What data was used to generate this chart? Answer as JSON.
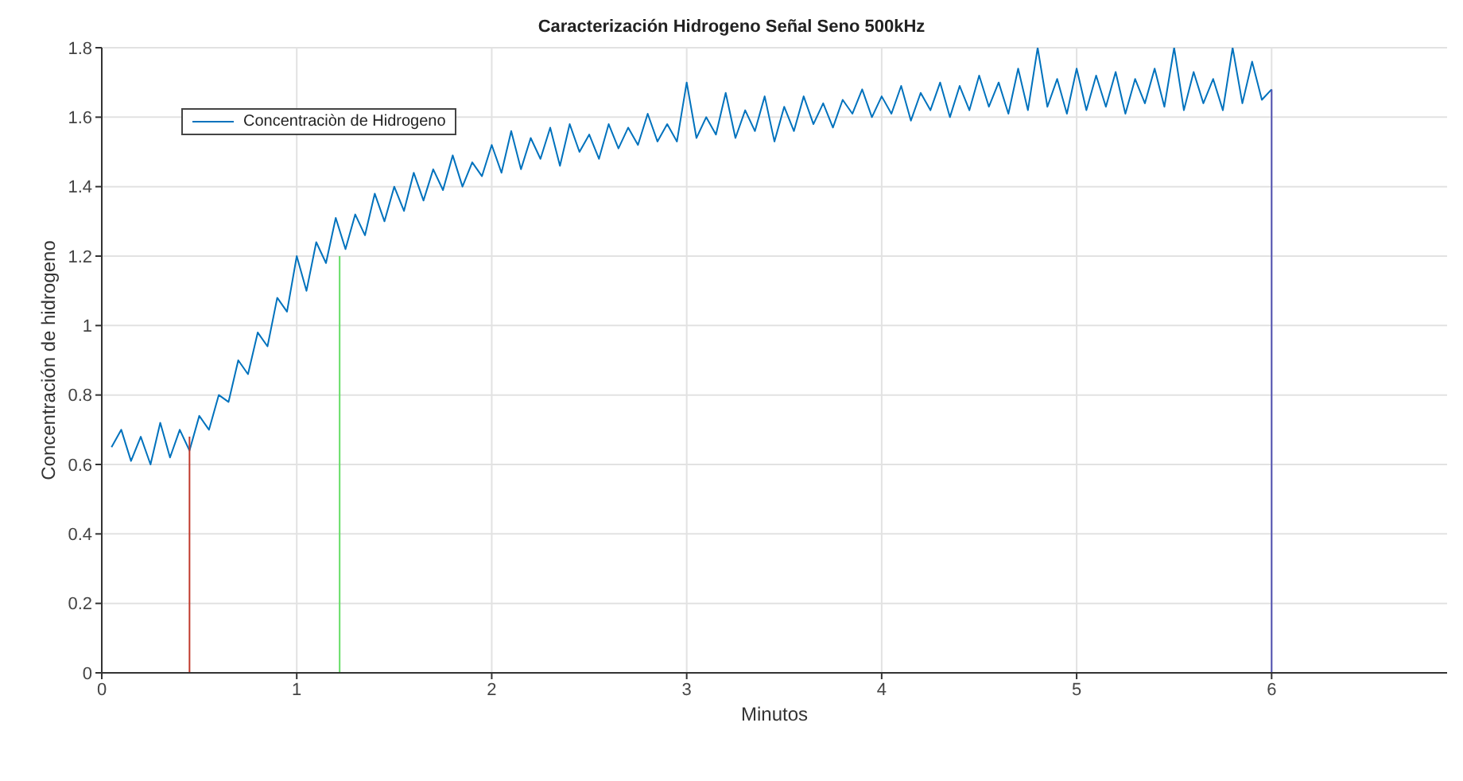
{
  "chart_data": {
    "type": "line",
    "title": "Caracterización Hidrogeno  Señal Seno 500kHz",
    "xlabel": "Minutos",
    "ylabel": "Concentración de hidrogeno",
    "xlim": [
      0,
      6.9
    ],
    "xticks": [
      0,
      1,
      2,
      3,
      4,
      5,
      6
    ],
    "ylim": [
      0,
      1.8
    ],
    "yticks": [
      0,
      0.2,
      0.4,
      0.6,
      0.8,
      1,
      1.2,
      1.4,
      1.6,
      1.8
    ],
    "grid": true,
    "legend": "top left",
    "marker": "none",
    "line_style": "solid",
    "series": [
      {
        "name": "Concentraciòn de Hidrogeno",
        "color": "#0072bd",
        "x": [
          0.05,
          0.1,
          0.15,
          0.2,
          0.25,
          0.3,
          0.35,
          0.4,
          0.45,
          0.5,
          0.55,
          0.6,
          0.65,
          0.7,
          0.75,
          0.8,
          0.85,
          0.9,
          0.95,
          1.0,
          1.05,
          1.1,
          1.15,
          1.2,
          1.25,
          1.3,
          1.35,
          1.4,
          1.45,
          1.5,
          1.55,
          1.6,
          1.65,
          1.7,
          1.75,
          1.8,
          1.85,
          1.9,
          1.95,
          2.0,
          2.05,
          2.1,
          2.15,
          2.2,
          2.25,
          2.3,
          2.35,
          2.4,
          2.45,
          2.5,
          2.55,
          2.6,
          2.65,
          2.7,
          2.75,
          2.8,
          2.85,
          2.9,
          2.95,
          3.0,
          3.05,
          3.1,
          3.15,
          3.2,
          3.25,
          3.3,
          3.35,
          3.4,
          3.45,
          3.5,
          3.55,
          3.6,
          3.65,
          3.7,
          3.75,
          3.8,
          3.85,
          3.9,
          3.95,
          4.0,
          4.05,
          4.1,
          4.15,
          4.2,
          4.25,
          4.3,
          4.35,
          4.4,
          4.45,
          4.5,
          4.55,
          4.6,
          4.65,
          4.7,
          4.75,
          4.8,
          4.85,
          4.9,
          4.95,
          5.0,
          5.05,
          5.1,
          5.15,
          5.2,
          5.25,
          5.3,
          5.35,
          5.4,
          5.45,
          5.5,
          5.55,
          5.6,
          5.65,
          5.7,
          5.75,
          5.8,
          5.85,
          5.9,
          5.95,
          6.0
        ],
        "values": [
          0.65,
          0.7,
          0.61,
          0.68,
          0.6,
          0.72,
          0.62,
          0.7,
          0.64,
          0.74,
          0.7,
          0.8,
          0.78,
          0.9,
          0.86,
          0.98,
          0.94,
          1.08,
          1.04,
          1.2,
          1.1,
          1.24,
          1.18,
          1.31,
          1.22,
          1.32,
          1.26,
          1.38,
          1.3,
          1.4,
          1.33,
          1.44,
          1.36,
          1.45,
          1.39,
          1.49,
          1.4,
          1.47,
          1.43,
          1.52,
          1.44,
          1.56,
          1.45,
          1.54,
          1.48,
          1.57,
          1.46,
          1.58,
          1.5,
          1.55,
          1.48,
          1.58,
          1.51,
          1.57,
          1.52,
          1.61,
          1.53,
          1.58,
          1.53,
          1.7,
          1.54,
          1.6,
          1.55,
          1.67,
          1.54,
          1.62,
          1.56,
          1.66,
          1.53,
          1.63,
          1.56,
          1.66,
          1.58,
          1.64,
          1.57,
          1.65,
          1.61,
          1.68,
          1.6,
          1.66,
          1.61,
          1.69,
          1.59,
          1.67,
          1.62,
          1.7,
          1.6,
          1.69,
          1.62,
          1.72,
          1.63,
          1.7,
          1.61,
          1.74,
          1.62,
          1.8,
          1.63,
          1.71,
          1.61,
          1.74,
          1.62,
          1.72,
          1.63,
          1.73,
          1.61,
          1.71,
          1.64,
          1.74,
          1.63,
          1.8,
          1.62,
          1.73,
          1.64,
          1.71,
          1.62,
          1.8,
          1.64,
          1.76,
          1.65,
          1.68
        ]
      },
      {
        "color": "#c0392b",
        "x": [
          0.45,
          0.45
        ],
        "values": [
          0,
          0.68
        ]
      },
      {
        "color": "#66dd66",
        "x": [
          1.22,
          1.22
        ],
        "values": [
          0,
          1.2
        ]
      },
      {
        "color": "#5050b0",
        "x": [
          6,
          6
        ],
        "values": [
          0,
          1.68
        ]
      }
    ]
  }
}
